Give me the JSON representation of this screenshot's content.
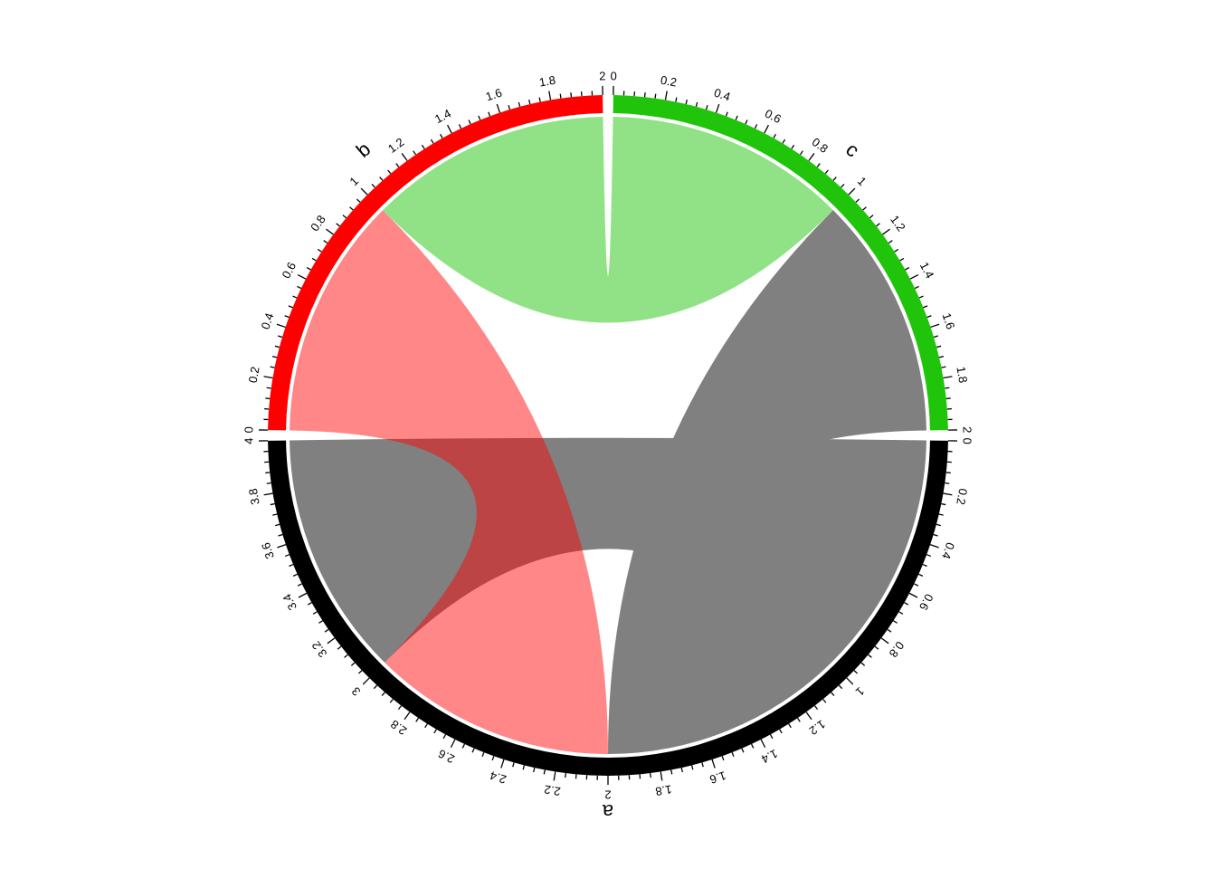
{
  "chart_data": {
    "type": "chord",
    "sectors": [
      {
        "name": "a",
        "range": [
          0,
          4
        ],
        "color": "#000000",
        "tick_labels": [
          "0",
          "0.2",
          "0.4",
          "0.6",
          "0.8",
          "1",
          "1.2",
          "1.4",
          "1.6",
          "1.8",
          "2",
          "2.2",
          "2.4",
          "2.6",
          "2.8",
          "3",
          "3.2",
          "3.4",
          "3.6",
          "3.8",
          "4"
        ]
      },
      {
        "name": "b",
        "range": [
          0,
          2
        ],
        "color": "#FF0000",
        "tick_labels": [
          "0",
          "0.2",
          "0.4",
          "0.6",
          "0.8",
          "1",
          "1.2",
          "1.4",
          "1.6",
          "1.8",
          "2"
        ]
      },
      {
        "name": "c",
        "range": [
          0,
          2
        ],
        "color": "#1FC40B",
        "tick_labels": [
          "0",
          "0.2",
          "0.4",
          "0.6",
          "0.8",
          "1",
          "1.2",
          "1.4",
          "1.6",
          "1.8",
          "2"
        ]
      }
    ],
    "links": [
      {
        "from": "a",
        "to": "a",
        "from_range": [
          0,
          1
        ],
        "to_range": [
          3,
          4
        ],
        "color": "#808080",
        "opacity": 1
      },
      {
        "from": "a",
        "to": "b",
        "from_range": [
          2,
          3
        ],
        "to_range": [
          0,
          1
        ],
        "color": "#FF0000",
        "opacity": 0.47
      },
      {
        "from": "a",
        "to": "c",
        "from_range": [
          1,
          2
        ],
        "to_range": [
          1,
          2
        ],
        "color": "#808080",
        "opacity": 1
      },
      {
        "from": "b",
        "to": "c",
        "from_range": [
          1,
          2
        ],
        "to_range": [
          0,
          1
        ],
        "color": "#1FC40B",
        "opacity": 0.49
      }
    ]
  }
}
